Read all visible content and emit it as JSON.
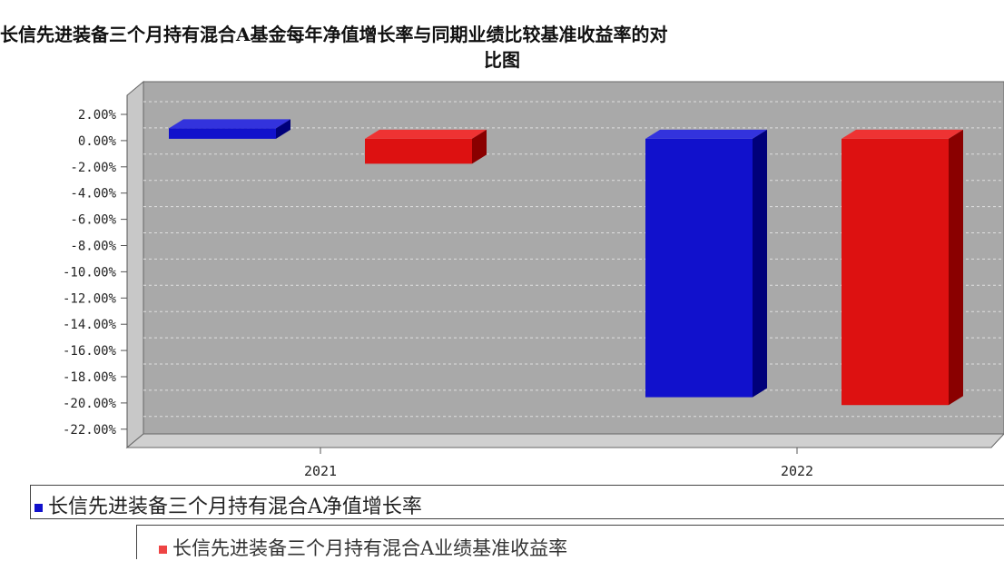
{
  "chart_data": {
    "type": "bar",
    "title_line1": "长信先进装备三个月持有混合A基金每年净值增长率与同期业绩比较基准收益率的对",
    "title_line2": "比图",
    "categories": [
      "2021",
      "2022"
    ],
    "series": [
      {
        "name": "长信先进装备三个月持有混合A净值增长率",
        "values": [
          0.8,
          -19.7
        ],
        "color": "#1111cc"
      },
      {
        "name": "长信先进装备三个月持有混合A业绩基准收益率",
        "values": [
          -1.9,
          -20.3
        ],
        "color": "#dd1111"
      }
    ],
    "y_ticks": [
      "2.00%",
      "0.00%",
      "-2.00%",
      "-4.00%",
      "-6.00%",
      "-8.00%",
      "-10.00%",
      "-12.00%",
      "-14.00%",
      "-16.00%",
      "-18.00%",
      "-20.00%",
      "-22.00%"
    ],
    "ylim": [
      -23,
      3
    ],
    "grid": true,
    "legend_position": "bottom"
  }
}
